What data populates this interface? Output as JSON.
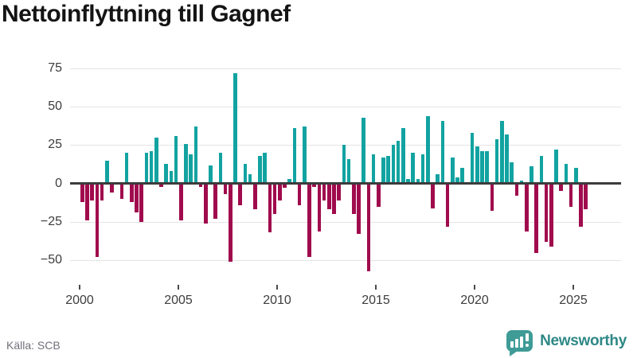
{
  "title": "Nettoinflyttning till Gagnef",
  "source": "Källa: SCB",
  "brand": {
    "name": "Newsworthy"
  },
  "colors": {
    "positive": "#12A3A1",
    "negative": "#A00B4D",
    "grid": "#E4E4E4",
    "zero_line": "#3C3C3C",
    "axis_text": "#3D3D3D",
    "title_text": "#141414",
    "source_text": "#70707A",
    "brand_teal": "#2E8886",
    "brand_icon_teal": "#3F9B96"
  },
  "chart_data": {
    "type": "bar",
    "title": "Nettoinflyttning till Gagnef",
    "x_start": "2000 Q1",
    "interval": "quarter",
    "x_tick_labels": [
      "2000",
      "2005",
      "2010",
      "2015",
      "2020",
      "2025"
    ],
    "y_ticks": [
      75,
      50,
      25,
      0,
      -25,
      -50
    ],
    "ylim": [
      -60,
      80
    ],
    "grid": "horizontal",
    "legend": "none",
    "series": [
      {
        "name": "Nettoinflyttning",
        "values": [
          -12,
          -24,
          -11,
          -48,
          -11,
          15,
          -6,
          0,
          -10,
          20,
          -12,
          -19,
          -25,
          20,
          21,
          30,
          -2,
          13,
          8,
          31,
          -24,
          26,
          19,
          37,
          -2,
          -26,
          12,
          -23,
          20,
          -7,
          -51,
          72,
          -14,
          13,
          6,
          -17,
          18,
          20,
          -32,
          -20,
          -11,
          -3,
          3,
          36,
          -14,
          37,
          -48,
          -2,
          -31,
          -11,
          -17,
          -20,
          -11,
          25,
          16,
          -20,
          -33,
          43,
          -57,
          19,
          -15,
          17,
          18,
          25,
          28,
          36,
          3,
          20,
          3,
          19,
          44,
          -16,
          6,
          41,
          -28,
          17,
          4,
          10,
          1,
          33,
          24,
          21,
          21,
          -18,
          29,
          41,
          32,
          14,
          -8,
          2,
          -31,
          11,
          -45,
          18,
          -38,
          -41,
          22,
          -5,
          13,
          -15,
          10,
          -28,
          -17
        ]
      }
    ]
  }
}
